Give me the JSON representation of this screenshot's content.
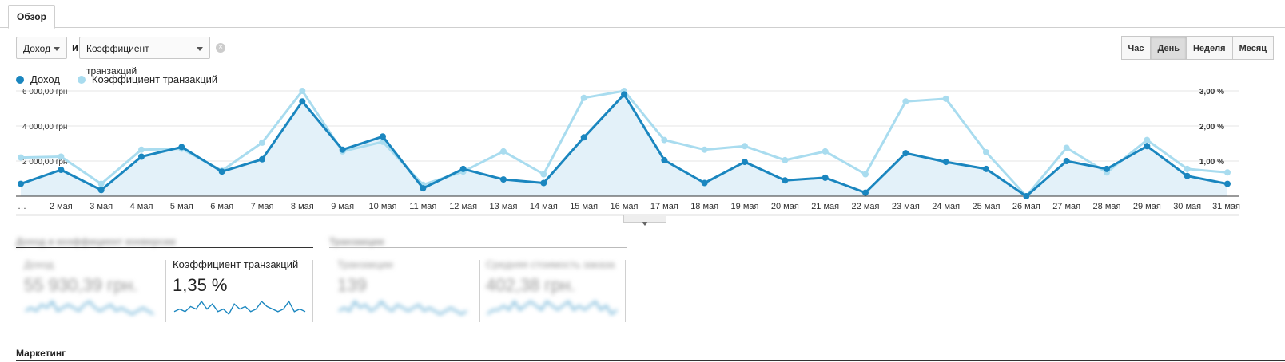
{
  "tabs": [
    {
      "label": "Обзор"
    }
  ],
  "toolbar": {
    "metric1": "Доход",
    "conjunction": "и",
    "metric2": "Коэффициент транзакций",
    "time_buttons": [
      "Час",
      "День",
      "Неделя",
      "Месяц"
    ],
    "active_time_button": "День"
  },
  "legend": [
    {
      "label": "Доход",
      "color": "#1a86bf"
    },
    {
      "label": "Коэффициент транзакций",
      "color": "#a9dcef"
    }
  ],
  "chart_data": {
    "type": "line",
    "x": [
      "…",
      "2 мая",
      "3 мая",
      "4 мая",
      "5 мая",
      "6 мая",
      "7 мая",
      "8 мая",
      "9 мая",
      "10 мая",
      "11 мая",
      "12 мая",
      "13 мая",
      "14 мая",
      "15 мая",
      "16 мая",
      "17 мая",
      "18 мая",
      "19 мая",
      "20 мая",
      "21 мая",
      "22 мая",
      "23 мая",
      "24 мая",
      "25 мая",
      "26 мая",
      "27 мая",
      "28 мая",
      "29 мая",
      "30 мая",
      "31 мая"
    ],
    "y_left_ticks": [
      "6 000,00 грн",
      "4 000,00 грн",
      "2 000,00 грн"
    ],
    "y_right_ticks": [
      "3,00 %",
      "2,00 %",
      "1,00 %"
    ],
    "y_left_range": [
      0,
      6000
    ],
    "y_right_range": [
      0,
      3
    ],
    "series": [
      {
        "name": "Доход",
        "axis": "left",
        "values": [
          700,
          1500,
          350,
          2250,
          2800,
          1400,
          2100,
          5400,
          2650,
          3400,
          450,
          1550,
          950,
          750,
          3350,
          5800,
          2050,
          750,
          1950,
          900,
          1050,
          200,
          2450,
          1950,
          1550,
          0,
          2000,
          1550,
          2850,
          1150,
          700
        ]
      },
      {
        "name": "Коэффициент транзакций",
        "axis": "left",
        "values": [
          2200,
          2250,
          700,
          2650,
          2700,
          1450,
          3050,
          6000,
          2550,
          3100,
          650,
          1400,
          2550,
          1250,
          5600,
          6000,
          3200,
          2650,
          2850,
          2050,
          2550,
          1250,
          5400,
          5550,
          2500,
          0,
          2750,
          1350,
          3200,
          1550,
          1350
        ]
      }
    ],
    "grid": true,
    "legend_position": "top-left"
  },
  "scorecards": {
    "group1_title": "Доход и коэффициент конверсии",
    "group2_title": "Транзакции",
    "cards": [
      {
        "label": "Доход",
        "value": "55 930,39 грн.",
        "spark": [
          3,
          4,
          3,
          5,
          4,
          6,
          3,
          4,
          5,
          4,
          3,
          5,
          6,
          4,
          3,
          4,
          5,
          3,
          4,
          3,
          2,
          3,
          4,
          3,
          2
        ]
      },
      {
        "label": "Коэффициент транзакций",
        "value": "1,35 %",
        "spark": [
          2,
          3,
          2,
          4,
          3,
          6,
          3,
          5,
          2,
          3,
          1,
          5,
          3,
          4,
          2,
          3,
          6,
          4,
          3,
          2,
          3,
          6,
          2,
          3,
          2
        ]
      },
      {
        "label": "Транзакции",
        "value": "139",
        "spark": [
          3,
          4,
          3,
          6,
          4,
          5,
          3,
          4,
          6,
          4,
          3,
          5,
          4,
          3,
          4,
          5,
          3,
          4,
          3,
          2,
          3,
          4,
          3,
          2,
          3
        ]
      },
      {
        "label": "Средняя стоимость заказа",
        "value": "402,38 грн.",
        "spark": [
          3,
          4,
          4,
          5,
          4,
          6,
          4,
          5,
          6,
          5,
          4,
          6,
          5,
          4,
          5,
          6,
          4,
          5,
          4,
          5,
          6,
          4,
          5,
          3,
          4
        ]
      }
    ]
  },
  "marketing": {
    "title": "Маркетинг"
  }
}
